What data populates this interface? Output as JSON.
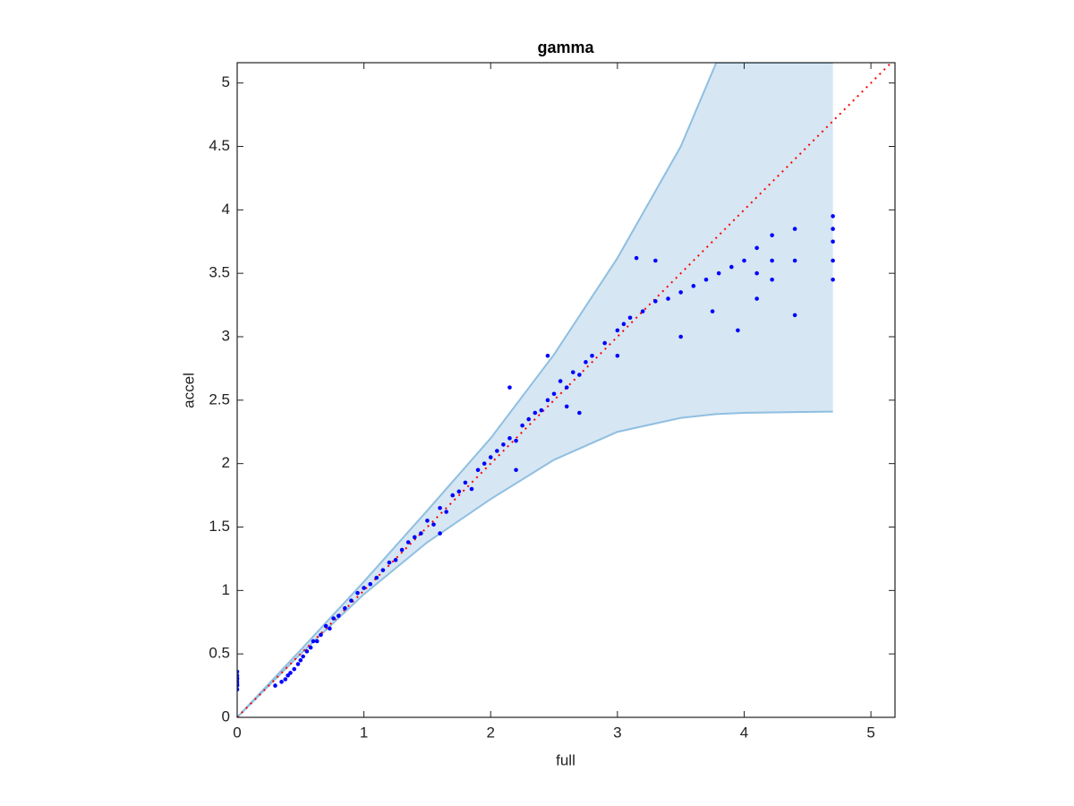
{
  "chart_data": {
    "type": "scatter",
    "title": "gamma",
    "x_label": "full",
    "y_label": "accel",
    "xlim": [
      0,
      5.19
    ],
    "ylim": [
      0,
      5.16
    ],
    "xticks": [
      0,
      1,
      2,
      3,
      4,
      5
    ],
    "yticks": [
      0,
      0.5,
      1,
      1.5,
      2,
      2.5,
      3,
      3.5,
      4,
      4.5,
      5
    ],
    "series": [
      {
        "type": "area",
        "color": "#d6e6f3",
        "edge_color": "#8fbfe0",
        "x": [
          0,
          0.5,
          1,
          1.5,
          2,
          2.5,
          3,
          3.5,
          3.78,
          4,
          4.7
        ],
        "upper": [
          0,
          0.53,
          1.07,
          1.63,
          2.2,
          2.86,
          3.62,
          4.5,
          5.16,
          5.16,
          5.16
        ],
        "lower": [
          0,
          0.5,
          0.97,
          1.38,
          1.72,
          2.03,
          2.25,
          2.36,
          2.39,
          2.4,
          2.41
        ]
      },
      {
        "type": "line",
        "color": "#ff0000",
        "dashed": true,
        "x": [
          0,
          5.19
        ],
        "values": [
          0,
          5.19
        ]
      },
      {
        "type": "scatter",
        "color": "#0000ff",
        "x": [
          0,
          0,
          0,
          0,
          0,
          0,
          0,
          0,
          0.35,
          0.38,
          0.4,
          0.42,
          0.45,
          0.48,
          0.5,
          0.52,
          0.55,
          0.58,
          0.6,
          0.63,
          0.66,
          0.7,
          0.73,
          0.76,
          0.8,
          0.85,
          0.9,
          0.95,
          1.0,
          1.05,
          1.1,
          1.15,
          1.2,
          1.25,
          1.3,
          1.35,
          1.4,
          1.45,
          1.5,
          1.55,
          1.6,
          1.65,
          1.7,
          1.75,
          1.8,
          1.85,
          1.9,
          1.95,
          2.0,
          2.05,
          2.1,
          2.15,
          2.2,
          2.25,
          2.3,
          2.35,
          2.4,
          2.45,
          2.5,
          2.55,
          2.6,
          2.65,
          2.7,
          2.75,
          2.8,
          2.9,
          3.0,
          3.05,
          3.1,
          3.2,
          3.3,
          3.4,
          3.5,
          3.6,
          3.7,
          3.8,
          3.9,
          4.0,
          4.1,
          4.1,
          4.1,
          4.22,
          4.22,
          4.22,
          4.4,
          4.4,
          4.4,
          4.7,
          4.7,
          4.7,
          4.7,
          4.7,
          2.15,
          2.45,
          3.15,
          2.7,
          3.5,
          3.95,
          1.6,
          2.2,
          0.3,
          3.3,
          2.6,
          3.0,
          3.75
        ],
        "values": [
          0.22,
          0.25,
          0.28,
          0.3,
          0.33,
          0.36,
          0.26,
          0.31,
          0.28,
          0.3,
          0.33,
          0.35,
          0.38,
          0.42,
          0.45,
          0.48,
          0.52,
          0.55,
          0.6,
          0.6,
          0.65,
          0.72,
          0.7,
          0.78,
          0.8,
          0.86,
          0.92,
          0.98,
          1.02,
          1.05,
          1.1,
          1.16,
          1.22,
          1.24,
          1.32,
          1.38,
          1.42,
          1.45,
          1.55,
          1.52,
          1.65,
          1.62,
          1.75,
          1.78,
          1.85,
          1.8,
          1.95,
          2.0,
          2.05,
          2.1,
          2.15,
          2.2,
          2.18,
          2.3,
          2.35,
          2.4,
          2.42,
          2.5,
          2.55,
          2.65,
          2.6,
          2.72,
          2.7,
          2.8,
          2.85,
          2.95,
          3.05,
          3.1,
          3.15,
          3.2,
          3.28,
          3.3,
          3.35,
          3.4,
          3.45,
          3.5,
          3.55,
          3.6,
          3.7,
          3.5,
          3.3,
          3.8,
          3.6,
          3.45,
          3.85,
          3.6,
          3.17,
          3.95,
          3.85,
          3.75,
          3.6,
          3.45,
          2.6,
          2.85,
          3.62,
          2.4,
          3.0,
          3.05,
          1.45,
          1.95,
          0.25,
          3.6,
          2.45,
          2.85,
          3.2
        ]
      }
    ]
  }
}
